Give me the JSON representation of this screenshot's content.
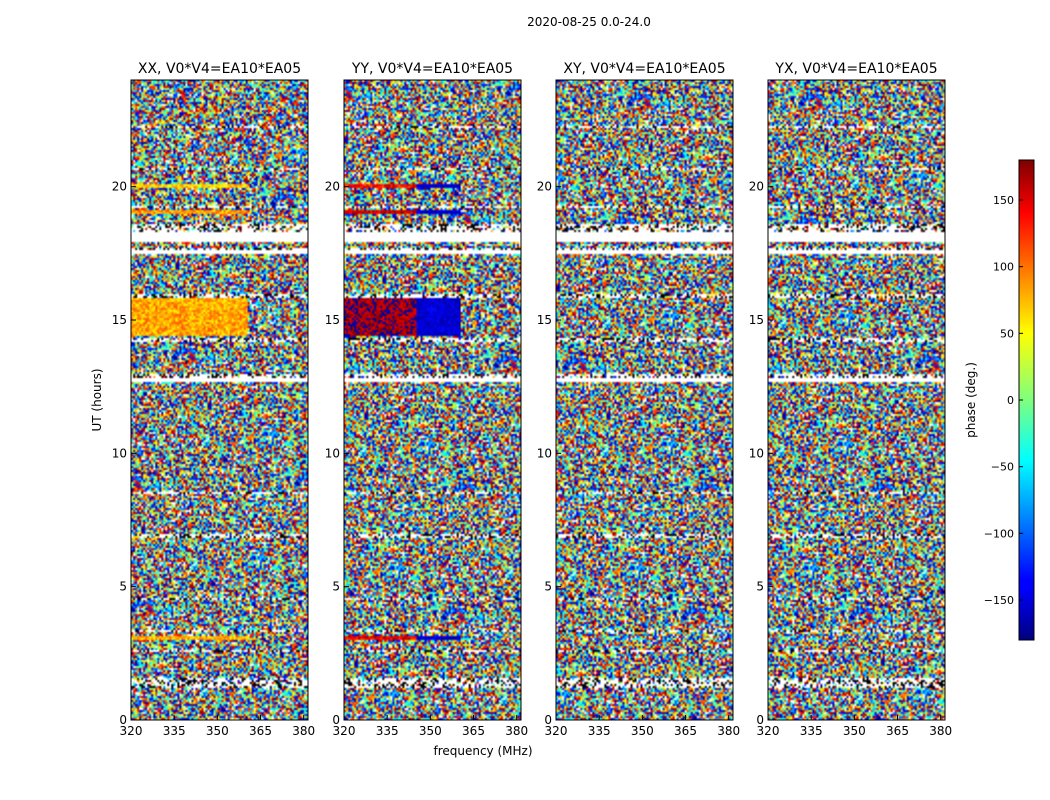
{
  "figure": {
    "suptitle": "2020-08-25 0.0-24.0",
    "xlabel": "frequency (MHz)",
    "ylabel": "UT (hours)",
    "colorbar_label": "phase (deg.)"
  },
  "chart_data": {
    "type": "heatmap",
    "panels": [
      {
        "title": "XX, V0*V4=EA10*EA05",
        "character": "xx"
      },
      {
        "title": "YY, V0*V4=EA10*EA05",
        "character": "yy"
      },
      {
        "title": "XY, V0*V4=EA10*EA05",
        "character": "noise"
      },
      {
        "title": "YX, V0*V4=EA10*EA05",
        "character": "noise"
      }
    ],
    "x": {
      "label": "frequency (MHz)",
      "range": [
        320,
        381.5
      ],
      "ticks": [
        320,
        335,
        350,
        365,
        380
      ]
    },
    "y": {
      "label": "UT (hours)",
      "range": [
        0,
        24
      ],
      "ticks": [
        0,
        5,
        10,
        15,
        20
      ]
    },
    "colorbar": {
      "label": "phase (deg.)",
      "range": [
        -180,
        180
      ],
      "ticks": [
        -150,
        -100,
        -50,
        0,
        50,
        100,
        150
      ],
      "colormap": "jet"
    },
    "flagged_ut_hours": [
      [
        1.2,
        1.6
      ],
      [
        2.15,
        2.2
      ],
      [
        2.55,
        2.6
      ],
      [
        3.3,
        3.35
      ],
      [
        4.5,
        4.55
      ],
      [
        6.8,
        7.0
      ],
      [
        8.5,
        8.55
      ],
      [
        9.8,
        9.85
      ],
      [
        12.8,
        13.0
      ],
      [
        14.2,
        14.35
      ],
      [
        15.8,
        16.0
      ],
      [
        17.6,
        17.7
      ],
      [
        18.3,
        18.6
      ],
      [
        19.2,
        19.3
      ],
      [
        20.6,
        20.7
      ],
      [
        22.2,
        22.25
      ]
    ],
    "blank_ut_hours": [
      [
        12.7,
        12.85
      ],
      [
        17.45,
        17.6
      ],
      [
        17.95,
        18.3
      ]
    ],
    "bright_bands_ut_hours": [
      {
        "range": [
          14.4,
          15.8
        ],
        "xx_phase_deg": 75,
        "yy_phase_deg": 170
      },
      {
        "range": [
          18.95,
          19.15
        ],
        "xx_phase_deg": 80,
        "yy_phase_deg": 150
      },
      {
        "range": [
          19.95,
          20.1
        ],
        "xx_phase_deg": 60,
        "yy_phase_deg": 130
      },
      {
        "range": [
          3.0,
          3.15
        ],
        "xx_phase_deg": 70,
        "yy_phase_deg": 140
      }
    ]
  }
}
